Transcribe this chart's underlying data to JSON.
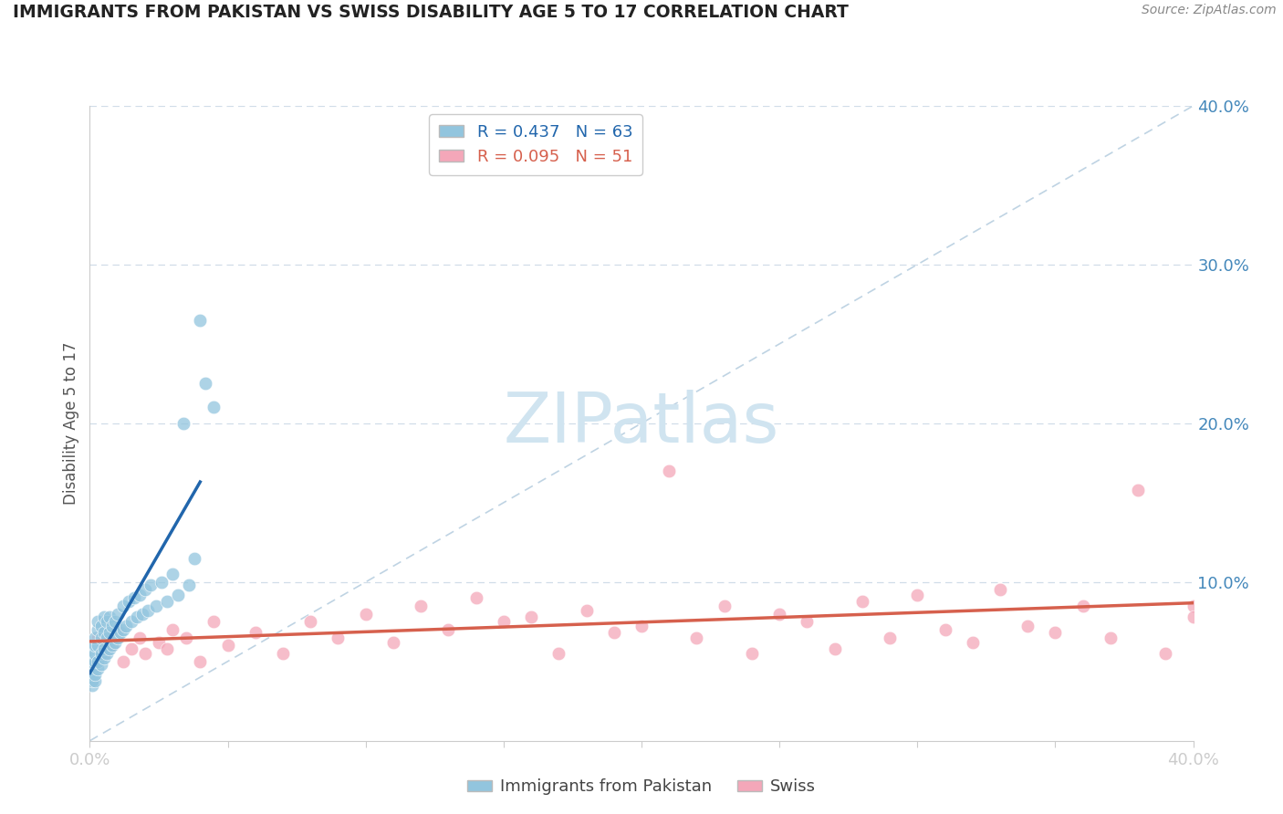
{
  "title": "IMMIGRANTS FROM PAKISTAN VS SWISS DISABILITY AGE 5 TO 17 CORRELATION CHART",
  "source": "Source: ZipAtlas.com",
  "ylabel": "Disability Age 5 to 17",
  "xlim": [
    0.0,
    0.4
  ],
  "ylim": [
    0.0,
    0.4
  ],
  "blue_R": 0.437,
  "blue_N": 63,
  "pink_R": 0.095,
  "pink_N": 51,
  "blue_color": "#92c5de",
  "blue_line_color": "#2166ac",
  "pink_color": "#f4a7b9",
  "pink_line_color": "#d6604d",
  "blue_label": "Immigrants from Pakistan",
  "pink_label": "Swiss",
  "watermark": "ZIPatlas",
  "watermark_color": "#d0e4f0",
  "background_color": "#ffffff",
  "grid_color": "#d0dde8",
  "diag_color": "#b8cfe0",
  "blue_x": [
    0.0005,
    0.001,
    0.001,
    0.001,
    0.001,
    0.001,
    0.001,
    0.001,
    0.002,
    0.002,
    0.002,
    0.002,
    0.002,
    0.002,
    0.003,
    0.003,
    0.003,
    0.003,
    0.003,
    0.004,
    0.004,
    0.004,
    0.004,
    0.005,
    0.005,
    0.005,
    0.005,
    0.006,
    0.006,
    0.006,
    0.007,
    0.007,
    0.007,
    0.008,
    0.008,
    0.009,
    0.009,
    0.01,
    0.01,
    0.011,
    0.012,
    0.012,
    0.013,
    0.014,
    0.015,
    0.016,
    0.017,
    0.018,
    0.019,
    0.02,
    0.021,
    0.022,
    0.024,
    0.026,
    0.028,
    0.03,
    0.032,
    0.034,
    0.036,
    0.038,
    0.04,
    0.042,
    0.045
  ],
  "blue_y": [
    0.04,
    0.035,
    0.045,
    0.038,
    0.05,
    0.042,
    0.055,
    0.06,
    0.038,
    0.042,
    0.05,
    0.055,
    0.06,
    0.065,
    0.045,
    0.05,
    0.06,
    0.07,
    0.075,
    0.048,
    0.055,
    0.065,
    0.072,
    0.052,
    0.058,
    0.068,
    0.078,
    0.055,
    0.065,
    0.075,
    0.058,
    0.068,
    0.078,
    0.06,
    0.072,
    0.062,
    0.075,
    0.065,
    0.08,
    0.068,
    0.07,
    0.085,
    0.072,
    0.088,
    0.075,
    0.09,
    0.078,
    0.092,
    0.08,
    0.095,
    0.082,
    0.098,
    0.085,
    0.1,
    0.088,
    0.105,
    0.092,
    0.2,
    0.098,
    0.115,
    0.265,
    0.225,
    0.21
  ],
  "pink_x": [
    0.003,
    0.005,
    0.008,
    0.01,
    0.012,
    0.015,
    0.018,
    0.02,
    0.025,
    0.028,
    0.03,
    0.035,
    0.04,
    0.045,
    0.05,
    0.06,
    0.07,
    0.08,
    0.09,
    0.1,
    0.11,
    0.12,
    0.13,
    0.14,
    0.15,
    0.16,
    0.17,
    0.18,
    0.19,
    0.2,
    0.21,
    0.22,
    0.23,
    0.24,
    0.25,
    0.26,
    0.27,
    0.28,
    0.29,
    0.3,
    0.31,
    0.32,
    0.33,
    0.34,
    0.35,
    0.36,
    0.37,
    0.38,
    0.39,
    0.4,
    0.4
  ],
  "pink_y": [
    0.065,
    0.055,
    0.06,
    0.07,
    0.05,
    0.058,
    0.065,
    0.055,
    0.062,
    0.058,
    0.07,
    0.065,
    0.05,
    0.075,
    0.06,
    0.068,
    0.055,
    0.075,
    0.065,
    0.08,
    0.062,
    0.085,
    0.07,
    0.09,
    0.075,
    0.078,
    0.055,
    0.082,
    0.068,
    0.072,
    0.17,
    0.065,
    0.085,
    0.055,
    0.08,
    0.075,
    0.058,
    0.088,
    0.065,
    0.092,
    0.07,
    0.062,
    0.095,
    0.072,
    0.068,
    0.085,
    0.065,
    0.158,
    0.055,
    0.085,
    0.078
  ]
}
